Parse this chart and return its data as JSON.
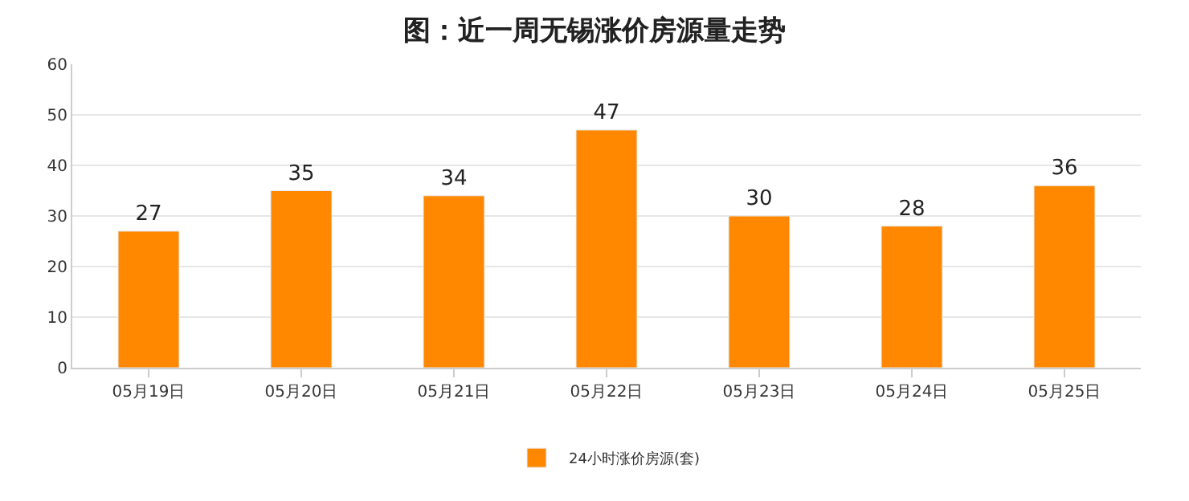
{
  "chart_data": {
    "type": "bar",
    "title": "图：近一周无锡涨价房源量走势",
    "categories": [
      "05月19日",
      "05月20日",
      "05月21日",
      "05月22日",
      "05月23日",
      "05月24日",
      "05月25日"
    ],
    "series": [
      {
        "name": "24小时涨价房源(套)",
        "color": "#ff8800",
        "values": [
          27,
          35,
          34,
          47,
          30,
          28,
          36
        ]
      }
    ],
    "ylim": [
      0,
      60
    ],
    "yticks": [
      0,
      10,
      20,
      30,
      40,
      50,
      60
    ],
    "grid": "y",
    "data_labels": true,
    "legend": "bottom"
  }
}
